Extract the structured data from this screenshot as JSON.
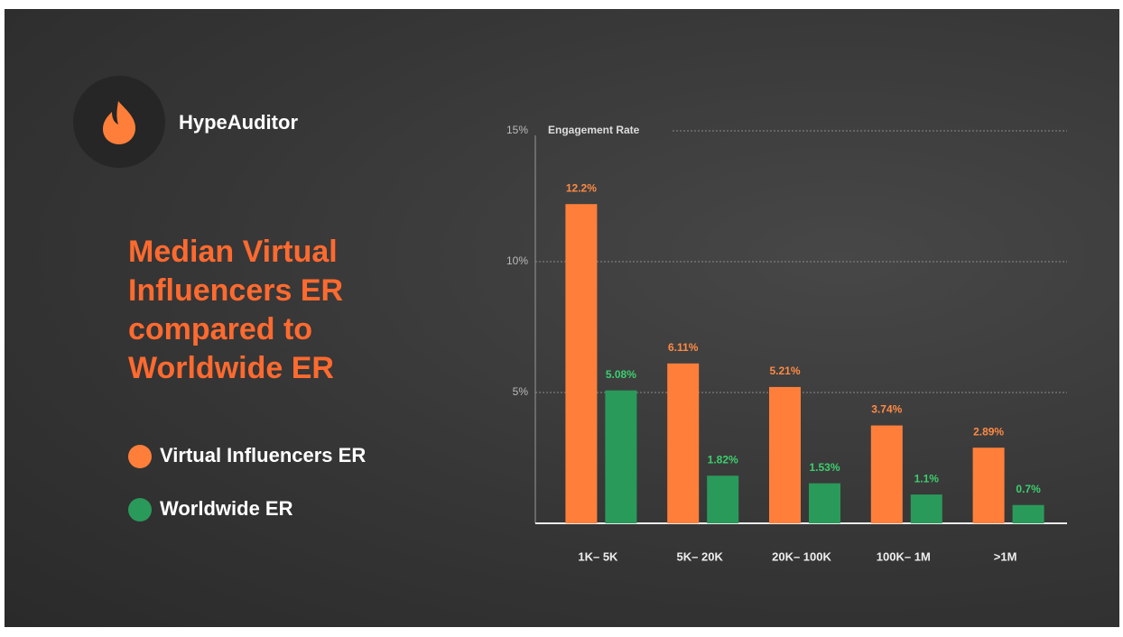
{
  "brand": "HypeAuditor",
  "chart_data": {
    "type": "bar",
    "title": "Median Virtual Influencers ER compared to Worldwide ER",
    "y_label": "Engagement Rate",
    "categories": [
      "1K– 5K",
      "5K– 20K",
      "20K– 100K",
      "100K– 1M",
      ">1M"
    ],
    "series": [
      {
        "name": "Virtual Influencers ER",
        "color": "#ff7f3a",
        "label_color": "#ff8a45",
        "values": [
          12.2,
          6.11,
          5.21,
          3.74,
          2.89
        ],
        "value_labels": [
          "12.2%",
          "6.11%",
          "5.21%",
          "3.74%",
          "2.89%"
        ]
      },
      {
        "name": "Worldwide ER",
        "color": "#2a9a5b",
        "label_color": "#3ccf6e",
        "values": [
          5.08,
          1.82,
          1.53,
          1.1,
          0.7
        ],
        "value_labels": [
          "5.08%",
          "1.82%",
          "1.53%",
          "1.1%",
          "0.7%"
        ]
      }
    ],
    "ylim": [
      0,
      15
    ],
    "yticks": [
      {
        "value": 5,
        "label": "5%"
      },
      {
        "value": 10,
        "label": "10%"
      },
      {
        "value": 15,
        "label": "15%"
      }
    ],
    "grid": true
  }
}
